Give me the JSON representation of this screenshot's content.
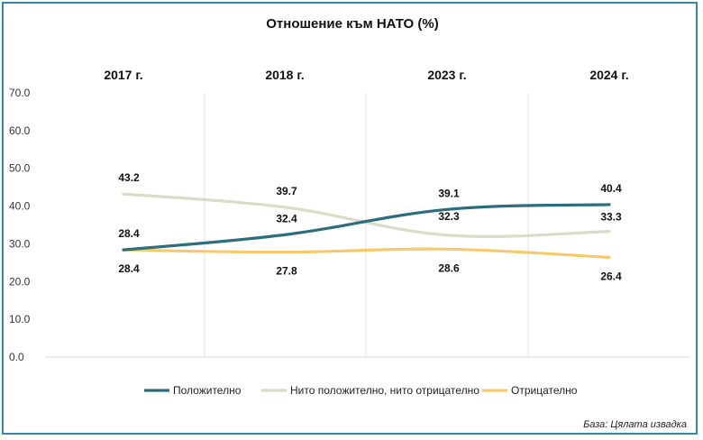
{
  "chart_data": {
    "type": "line",
    "title": "Отношение към НАТО (%)",
    "categories": [
      "2017 г.",
      "2018 г.",
      "2023 г.",
      "2024 г."
    ],
    "ylim": [
      0,
      70
    ],
    "yticks": [
      "0.0",
      "10.0",
      "20.0",
      "30.0",
      "40.0",
      "50.0",
      "60.0",
      "70.0"
    ],
    "grid": "vertical",
    "legend_position": "bottom",
    "series": [
      {
        "name": "Положително",
        "color": "#2d6e7e",
        "values": [
          28.4,
          32.4,
          39.1,
          40.4
        ],
        "labels": [
          "28.4",
          "32.4",
          "39.1",
          "40.4"
        ]
      },
      {
        "name": "Нито положително, нито отрицателно",
        "color": "#d9dcc6",
        "values": [
          43.2,
          39.7,
          32.3,
          33.3
        ],
        "labels": [
          "43.2",
          "39.7",
          "32.3",
          "33.3"
        ]
      },
      {
        "name": "Отрицателно",
        "color": "#f7c96a",
        "values": [
          28.4,
          27.8,
          28.6,
          26.4
        ],
        "labels": [
          "28.4",
          "27.8",
          "28.6",
          "26.4"
        ]
      }
    ],
    "source": "База: Цялата извадка"
  }
}
